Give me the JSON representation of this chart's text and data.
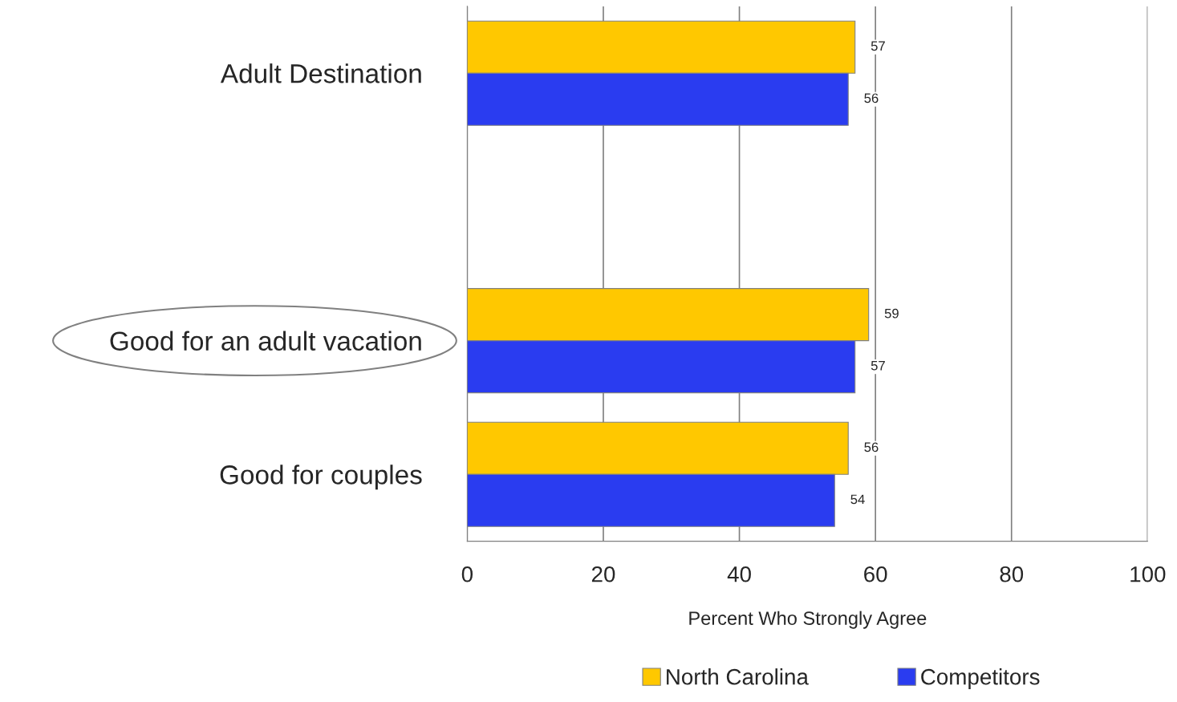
{
  "chart_data": {
    "type": "bar",
    "orientation": "horizontal",
    "categories": [
      "Adult Destination",
      null,
      "Good for an adult vacation",
      "Good for couples"
    ],
    "series": [
      {
        "name": "North Carolina",
        "color": "#ffc800",
        "values": [
          57,
          null,
          59,
          56
        ]
      },
      {
        "name": "Competitors",
        "color": "#2a3cf0",
        "values": [
          56,
          null,
          57,
          54
        ]
      }
    ],
    "xlabel": "Percent Who Strongly Agree",
    "xlim": [
      0,
      100
    ],
    "xticks": [
      0,
      20,
      40,
      60,
      80,
      100
    ],
    "grid": "x",
    "legend": "bottom",
    "data_labels": true
  }
}
